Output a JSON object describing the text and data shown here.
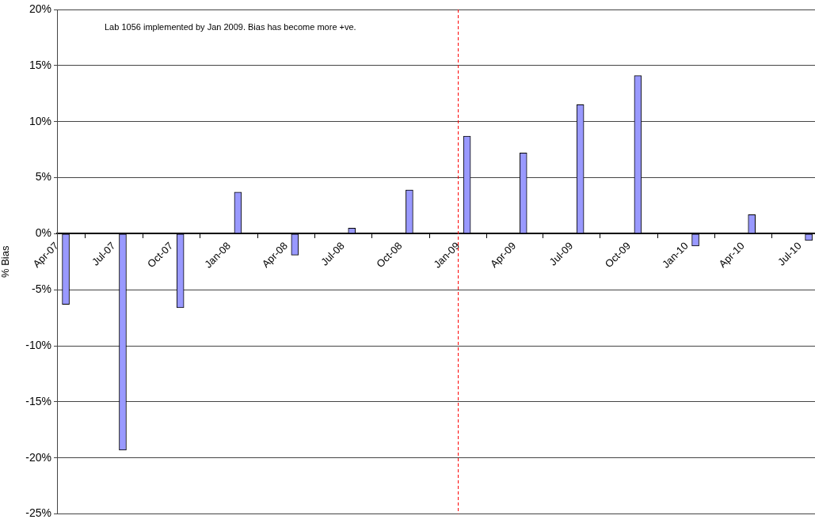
{
  "chart_data": {
    "type": "bar",
    "ylabel": "% Bias",
    "x": [
      "2007-04-15",
      "2007-07-15",
      "2007-10-15",
      "2008-01-15",
      "2008-04-15",
      "2008-07-15",
      "2008-10-15",
      "2009-01-15",
      "2009-04-15",
      "2009-07-15",
      "2009-10-15",
      "2010-01-15",
      "2010-04-15",
      "2010-07-15"
    ],
    "values": [
      -6.3,
      -19.3,
      -6.6,
      3.7,
      -1.9,
      0.5,
      3.9,
      8.7,
      7.2,
      11.5,
      14.1,
      -1.1,
      1.7,
      -0.6
    ],
    "color": "#9999ff",
    "xlim": [
      "2007-04-01",
      "2010-07-25"
    ],
    "xticks": [
      {
        "value": "2007-04-01",
        "label": "Apr-07"
      },
      {
        "value": "2007-07-01",
        "label": "Jul-07"
      },
      {
        "value": "2007-10-01",
        "label": "Oct-07"
      },
      {
        "value": "2008-01-01",
        "label": "Jan-08"
      },
      {
        "value": "2008-04-01",
        "label": "Apr-08"
      },
      {
        "value": "2008-07-01",
        "label": "Jul-08"
      },
      {
        "value": "2008-10-01",
        "label": "Oct-08"
      },
      {
        "value": "2009-01-01",
        "label": "Jan-09"
      },
      {
        "value": "2009-04-01",
        "label": "Apr-09"
      },
      {
        "value": "2009-07-01",
        "label": "Jul-09"
      },
      {
        "value": "2009-10-01",
        "label": "Oct-09"
      },
      {
        "value": "2010-01-01",
        "label": "Jan-10"
      },
      {
        "value": "2010-04-01",
        "label": "Apr-10"
      },
      {
        "value": "2010-07-01",
        "label": "Jul-10"
      }
    ],
    "ylim": [
      -25,
      20
    ],
    "yticks": [
      {
        "value": -25,
        "label": "-25%"
      },
      {
        "value": -20,
        "label": "-20%"
      },
      {
        "value": -15,
        "label": "-15%"
      },
      {
        "value": -10,
        "label": "-10%"
      },
      {
        "value": -5,
        "label": "-5%"
      },
      {
        "value": 0,
        "label": "0%"
      },
      {
        "value": 5,
        "label": "5%"
      },
      {
        "value": 10,
        "label": "10%"
      },
      {
        "value": 15,
        "label": "15%"
      },
      {
        "value": 20,
        "label": "20%"
      }
    ],
    "grid": "y",
    "ref_lines": [
      {
        "axis": "x",
        "value": "2009-01-01",
        "color": "#ff0000",
        "line_style": "dashed"
      }
    ],
    "annotations": [
      "Lab 1056 implemented by Jan 2009. Bias has become more +ve."
    ]
  }
}
